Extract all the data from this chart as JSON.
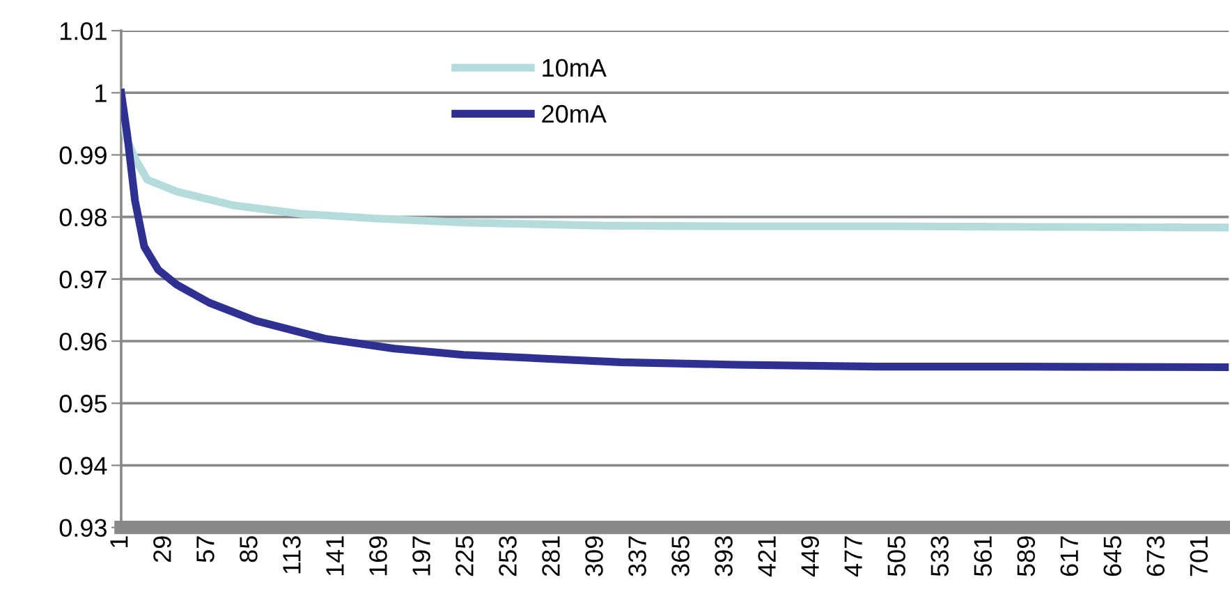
{
  "chart_data": {
    "type": "line",
    "xlim": [
      1,
      719
    ],
    "xticks": [
      1,
      29,
      57,
      85,
      113,
      141,
      169,
      197,
      225,
      253,
      281,
      309,
      337,
      365,
      393,
      421,
      449,
      477,
      505,
      533,
      561,
      589,
      617,
      645,
      673,
      701
    ],
    "ylim": [
      0.93,
      1.01
    ],
    "yticks": [
      0.93,
      0.94,
      0.95,
      0.96,
      0.97,
      0.98,
      0.99,
      {
        "value": 1.0,
        "label": "1"
      },
      1.01
    ],
    "grid": "y",
    "legend": "top",
    "marker": "none",
    "line_style": "solid",
    "series": [
      {
        "name": "10mA",
        "color": "#b4dcdc",
        "x": [
          1,
          4,
          10,
          18,
          37,
          73,
          118,
          163,
          223,
          313,
          400,
          500,
          600,
          719
        ],
        "values": [
          1.0,
          0.993,
          0.9894,
          0.986,
          0.9841,
          0.9819,
          0.9805,
          0.9798,
          0.9791,
          0.9786,
          0.9785,
          0.9785,
          0.9784,
          0.9783
        ]
      },
      {
        "name": "20mA",
        "color": "#2e3192",
        "x": [
          1,
          5,
          10,
          16,
          25,
          37,
          58,
          88,
          133,
          178,
          223,
          283,
          325,
          400,
          491,
          581,
          719
        ],
        "values": [
          1.0,
          0.9931,
          0.9826,
          0.9752,
          0.9715,
          0.9691,
          0.9662,
          0.9633,
          0.9604,
          0.9588,
          0.9578,
          0.9571,
          0.9566,
          0.9562,
          0.9559,
          0.9559,
          0.9558
        ]
      }
    ]
  }
}
